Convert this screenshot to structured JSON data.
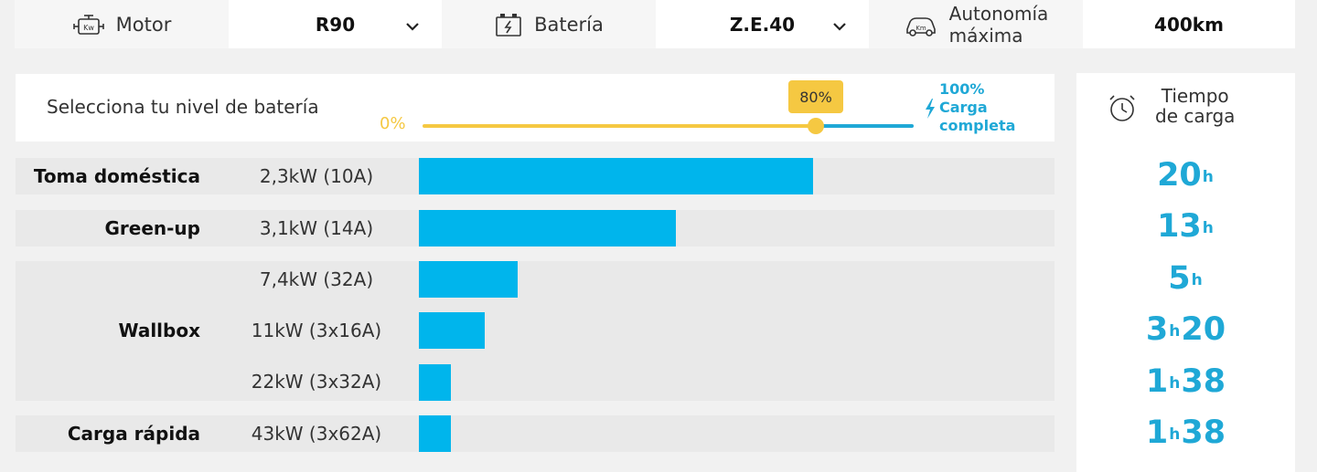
{
  "selectors": [
    {
      "label": "Motor",
      "icon": "motor-kw-icon",
      "value": "R90"
    },
    {
      "label": "Batería",
      "icon": "battery-icon",
      "value": "Z.E.40"
    },
    {
      "label_line1": "Autonomía",
      "label_line2": "máxima",
      "icon": "car-km-icon",
      "value": "400km"
    }
  ],
  "battery_slider": {
    "title": "Selecciona tu nivel de batería",
    "min_label": "0%",
    "current_label": "80%",
    "current_value": 0.8,
    "max_pct": "100%",
    "max_line1": "Carga",
    "max_line2": "completa",
    "colors": {
      "filled": "#f5c842",
      "remaining": "#1fa8d6"
    }
  },
  "charging": {
    "header_line1": "Tiempo",
    "header_line2": "de carga",
    "rows": [
      {
        "category": "Toma doméstica",
        "power": "2,3kW (10A)",
        "bar_fraction": 0.62,
        "hours": "20",
        "minutes": ""
      },
      {
        "category": "Green-up",
        "power": "3,1kW (14A)",
        "bar_fraction": 0.405,
        "hours": "13",
        "minutes": ""
      },
      {
        "category": "Wallbox",
        "power": "7,4kW (32A)",
        "bar_fraction": 0.155,
        "hours": "5",
        "minutes": ""
      },
      {
        "category": "",
        "power": "11kW (3x16A)",
        "bar_fraction": 0.103,
        "hours": "3",
        "minutes": "20"
      },
      {
        "category": "",
        "power": "22kW (3x32A)",
        "bar_fraction": 0.05,
        "hours": "1",
        "minutes": "38"
      },
      {
        "category": "Carga rápida",
        "power": "43kW (3x62A)",
        "bar_fraction": 0.05,
        "hours": "1",
        "minutes": "38"
      }
    ],
    "hour_unit": "h",
    "bar_color": "#00b5ec"
  }
}
